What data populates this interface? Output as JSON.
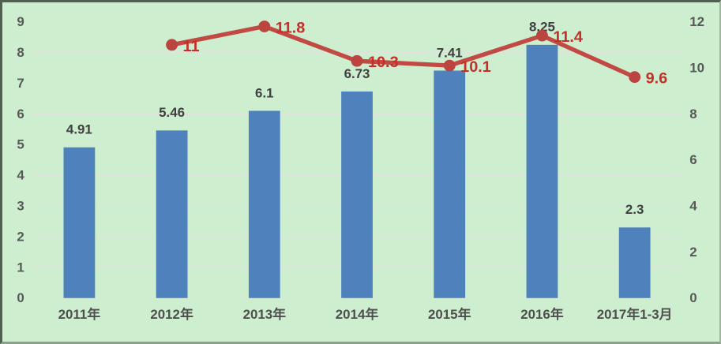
{
  "chart_data": {
    "type": "bar",
    "subtype": "bar-line-combo",
    "title": "",
    "categories": [
      "2011年",
      "2012年",
      "2013年",
      "2014年",
      "2015年",
      "2016年",
      "2017年1-3月"
    ],
    "series": [
      {
        "name": "bar-series",
        "type": "bar",
        "axis": "left",
        "color": "#4f81bd",
        "values": [
          4.91,
          5.46,
          6.1,
          6.73,
          7.41,
          8.25,
          2.3
        ],
        "labels": [
          "4.91",
          "5.46",
          "6.1",
          "6.73",
          "7.41",
          "8.25",
          "2.3"
        ]
      },
      {
        "name": "line-series",
        "type": "line",
        "axis": "right",
        "color": "#c24a45",
        "marker_color": "#bb4440",
        "label_color": "#c43028",
        "values": [
          null,
          11,
          11.8,
          10.3,
          10.1,
          11.4,
          9.6
        ],
        "labels": [
          "",
          "11",
          "11.8",
          "10.3",
          "10.1",
          "11.4",
          "9.6"
        ]
      }
    ],
    "left_axis": {
      "min": 0,
      "max": 9,
      "ticks": [
        "0",
        "1",
        "2",
        "3",
        "4",
        "5",
        "6",
        "7",
        "8",
        "9"
      ]
    },
    "right_axis": {
      "min": 0,
      "max": 12,
      "ticks": [
        "0",
        "2",
        "4",
        "6",
        "8",
        "10",
        "12"
      ]
    },
    "grid": "horizontal",
    "gridline_color": "#e6dfe2",
    "background": "#cdeecf",
    "legend": "none"
  }
}
